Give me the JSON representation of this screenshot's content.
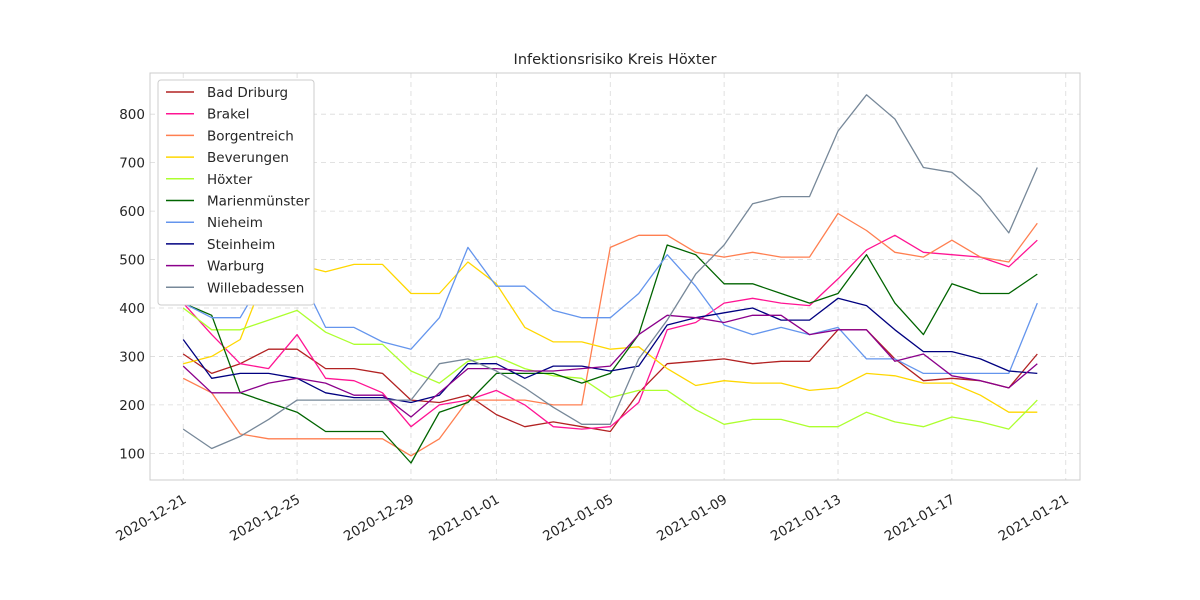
{
  "chart_data": {
    "type": "line",
    "title": "Infektionsrisiko Kreis Höxter",
    "xlabel": "",
    "ylabel": "",
    "x": [
      "2020-12-21",
      "2020-12-22",
      "2020-12-23",
      "2020-12-24",
      "2020-12-25",
      "2020-12-26",
      "2020-12-27",
      "2020-12-28",
      "2020-12-29",
      "2020-12-30",
      "2020-12-31",
      "2021-01-01",
      "2021-01-02",
      "2021-01-03",
      "2021-01-04",
      "2021-01-05",
      "2021-01-06",
      "2021-01-07",
      "2021-01-08",
      "2021-01-09",
      "2021-01-10",
      "2021-01-11",
      "2021-01-12",
      "2021-01-13",
      "2021-01-14",
      "2021-01-15",
      "2021-01-16",
      "2021-01-17",
      "2021-01-18",
      "2021-01-19",
      "2021-01-20"
    ],
    "xlim": [
      "2020-12-19T20:00",
      "2021-01-21T12:00"
    ],
    "ylim": [
      45,
      885
    ],
    "x_ticks": [
      "2020-12-21",
      "2020-12-25",
      "2020-12-29",
      "2021-01-01",
      "2021-01-05",
      "2021-01-09",
      "2021-01-13",
      "2021-01-17",
      "2021-01-21"
    ],
    "y_ticks": [
      100,
      200,
      300,
      400,
      500,
      600,
      700,
      800
    ],
    "grid": true,
    "legend_position": "top-left",
    "series": [
      {
        "name": "Bad Driburg",
        "color": "#b22222",
        "values": [
          305,
          265,
          285,
          315,
          315,
          275,
          275,
          265,
          210,
          205,
          220,
          180,
          155,
          165,
          155,
          145,
          225,
          285,
          290,
          295,
          285,
          290,
          290,
          355,
          355,
          295,
          250,
          255,
          250,
          235,
          305
        ]
      },
      {
        "name": "Brakel",
        "color": "#ff1493",
        "values": [
          410,
          345,
          285,
          275,
          345,
          255,
          250,
          225,
          155,
          200,
          210,
          230,
          200,
          155,
          150,
          155,
          205,
          355,
          370,
          410,
          420,
          410,
          405,
          460,
          520,
          550,
          515,
          510,
          505,
          485,
          540
        ]
      },
      {
        "name": "Borgentreich",
        "color": "#ff7f50",
        "values": [
          255,
          225,
          140,
          130,
          130,
          130,
          130,
          130,
          95,
          130,
          210,
          210,
          210,
          200,
          200,
          525,
          550,
          550,
          515,
          505,
          515,
          505,
          505,
          595,
          560,
          515,
          505,
          540,
          505,
          495,
          575
        ]
      },
      {
        "name": "Beverungen",
        "color": "#ffd700",
        "values": [
          285,
          300,
          335,
          485,
          490,
          475,
          490,
          490,
          430,
          430,
          495,
          450,
          360,
          330,
          330,
          315,
          320,
          275,
          240,
          250,
          245,
          245,
          230,
          235,
          265,
          260,
          245,
          245,
          220,
          185,
          185
        ]
      },
      {
        "name": "Höxter",
        "color": "#adff2f",
        "values": [
          400,
          355,
          355,
          375,
          395,
          350,
          325,
          325,
          270,
          245,
          290,
          300,
          275,
          260,
          255,
          215,
          230,
          230,
          190,
          160,
          170,
          170,
          155,
          155,
          185,
          165,
          155,
          175,
          165,
          150,
          210
        ]
      },
      {
        "name": "Marienmünster",
        "color": "#006400",
        "values": [
          410,
          385,
          225,
          205,
          185,
          145,
          145,
          145,
          80,
          185,
          205,
          265,
          265,
          265,
          245,
          265,
          345,
          530,
          510,
          450,
          450,
          430,
          410,
          430,
          510,
          410,
          345,
          450,
          430,
          430,
          470
        ]
      },
      {
        "name": "Nieheim",
        "color": "#6495ed",
        "values": [
          410,
          380,
          380,
          480,
          480,
          360,
          360,
          330,
          315,
          380,
          525,
          445,
          445,
          395,
          380,
          380,
          430,
          510,
          445,
          365,
          345,
          360,
          345,
          360,
          295,
          295,
          265,
          265,
          265,
          265,
          410
        ]
      },
      {
        "name": "Steinheim",
        "color": "#000080",
        "values": [
          335,
          255,
          265,
          265,
          255,
          225,
          215,
          215,
          205,
          220,
          285,
          285,
          255,
          280,
          280,
          270,
          280,
          365,
          380,
          390,
          400,
          375,
          375,
          420,
          405,
          355,
          310,
          310,
          295,
          270,
          265
        ]
      },
      {
        "name": "Warburg",
        "color": "#8b008b",
        "values": [
          280,
          225,
          225,
          245,
          255,
          245,
          220,
          220,
          175,
          225,
          275,
          275,
          270,
          270,
          275,
          280,
          345,
          385,
          380,
          370,
          385,
          385,
          345,
          355,
          355,
          290,
          305,
          260,
          250,
          235,
          285
        ]
      },
      {
        "name": "Willebadessen",
        "color": "#778899",
        "values": [
          150,
          110,
          135,
          170,
          210,
          210,
          210,
          210,
          210,
          285,
          295,
          270,
          235,
          195,
          160,
          160,
          295,
          375,
          470,
          530,
          615,
          630,
          630,
          765,
          840,
          790,
          690,
          680,
          630,
          555,
          690
        ]
      }
    ]
  }
}
